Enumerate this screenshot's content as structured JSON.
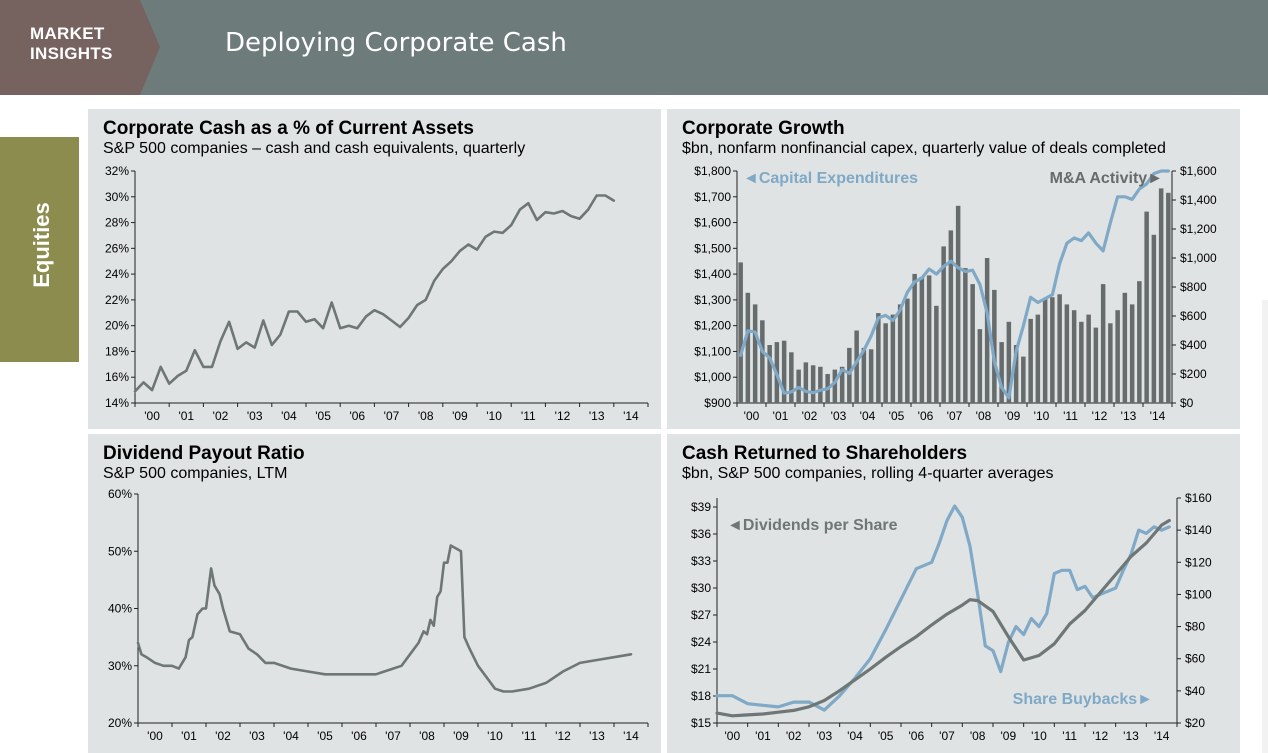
{
  "header": {
    "badge_line1": "MARKET",
    "badge_line2": "INSIGHTS",
    "title": "Deploying Corporate Cash",
    "bg_color": "#6e7b7b",
    "badge_color": "#76635f"
  },
  "side_tab": {
    "label": "Equities",
    "color": "#8c8c4e"
  },
  "colors": {
    "dark": "#6e7676",
    "light": "#7fa9c6",
    "bar": "#666b6b",
    "panel": "#dfe3e3"
  },
  "chart_data": [
    {
      "id": "cash",
      "type": "line",
      "title": "Corporate Cash as a % of Current Assets",
      "subtitle": "S&P 500 companies – cash and cash equivalents, quarterly",
      "ylim": [
        14,
        32
      ],
      "yticks": [
        14,
        16,
        18,
        20,
        22,
        24,
        26,
        28,
        30,
        32
      ],
      "ytick_labels": [
        "14%",
        "16%",
        "18%",
        "20%",
        "22%",
        "24%",
        "26%",
        "28%",
        "30%",
        "32%"
      ],
      "xlim": [
        2000,
        2015
      ],
      "xtick_labels": [
        "'00",
        "'01",
        "'02",
        "'03",
        "'04",
        "'05",
        "'06",
        "'07",
        "'08",
        "'09",
        "'10",
        "'11",
        "'12",
        "'13",
        "'14"
      ],
      "series": [
        {
          "name": "Cash % of current assets",
          "color": "#6e7676",
          "x": [
            2000.0,
            2000.25,
            2000.5,
            2000.75,
            2001.0,
            2001.25,
            2001.5,
            2001.75,
            2002.0,
            2002.25,
            2002.5,
            2002.75,
            2003.0,
            2003.25,
            2003.5,
            2003.75,
            2004.0,
            2004.25,
            2004.5,
            2004.75,
            2005.0,
            2005.25,
            2005.5,
            2005.75,
            2006.0,
            2006.25,
            2006.5,
            2006.75,
            2007.0,
            2007.25,
            2007.5,
            2007.75,
            2008.0,
            2008.25,
            2008.5,
            2008.75,
            2009.0,
            2009.25,
            2009.5,
            2009.75,
            2010.0,
            2010.25,
            2010.5,
            2010.75,
            2011.0,
            2011.25,
            2011.5,
            2011.75,
            2012.0,
            2012.25,
            2012.5,
            2012.75,
            2013.0,
            2013.25,
            2013.5,
            2013.75,
            2014.0
          ],
          "values": [
            14.9,
            15.6,
            15.0,
            16.8,
            15.5,
            16.1,
            16.5,
            18.1,
            16.8,
            16.8,
            18.8,
            20.3,
            18.2,
            18.7,
            18.3,
            20.4,
            18.5,
            19.3,
            21.1,
            21.1,
            20.3,
            20.5,
            19.8,
            21.8,
            19.8,
            20.0,
            19.8,
            20.7,
            21.2,
            20.9,
            20.4,
            19.9,
            20.6,
            21.6,
            22.0,
            23.5,
            24.4,
            25.0,
            25.8,
            26.3,
            25.9,
            26.9,
            27.3,
            27.2,
            27.8,
            29.0,
            29.5,
            28.2,
            28.8,
            28.7,
            28.9,
            28.5,
            28.3,
            29.0,
            30.1,
            30.1,
            29.7
          ]
        }
      ]
    },
    {
      "id": "growth",
      "type": "bar+line",
      "title": "Corporate Growth",
      "subtitle": "$bn, nonfarm nonfinancial capex, quarterly value of deals completed",
      "left_axis": {
        "label": "Capital Expenditures",
        "ylim": [
          900,
          1800
        ],
        "yticks": [
          900,
          1000,
          1100,
          1200,
          1300,
          1400,
          1500,
          1600,
          1700,
          1800
        ],
        "ytick_labels": [
          "$900",
          "$1,000",
          "$1,100",
          "$1,200",
          "$1,300",
          "$1,400",
          "$1,500",
          "$1,600",
          "$1,700",
          "$1,800"
        ]
      },
      "right_axis": {
        "label": "M&A Activity",
        "ylim": [
          0,
          1600
        ],
        "yticks": [
          0,
          200,
          400,
          600,
          800,
          1000,
          1200,
          1400,
          1600
        ],
        "ytick_labels": [
          "$0",
          "$200",
          "$400",
          "$600",
          "$800",
          "$1,000",
          "$1,200",
          "$1,400",
          "$1,600"
        ]
      },
      "xlim": [
        2000,
        2015
      ],
      "xtick_labels": [
        "'00",
        "'01",
        "'02",
        "'03",
        "'04",
        "'05",
        "'06",
        "'07",
        "'08",
        "'09",
        "'10",
        "'11",
        "'12",
        "'13",
        "'14"
      ],
      "legend_capex": "◄Capital Expenditures",
      "legend_mna": "M&A Activity►",
      "series": [
        {
          "name": "M&A Activity",
          "type": "bar",
          "axis": "right",
          "color": "#666b6b",
          "x": [
            2000.0,
            2000.25,
            2000.5,
            2000.75,
            2001.0,
            2001.25,
            2001.5,
            2001.75,
            2002.0,
            2002.25,
            2002.5,
            2002.75,
            2003.0,
            2003.25,
            2003.5,
            2003.75,
            2004.0,
            2004.25,
            2004.5,
            2004.75,
            2005.0,
            2005.25,
            2005.5,
            2005.75,
            2006.0,
            2006.25,
            2006.5,
            2006.75,
            2007.0,
            2007.25,
            2007.5,
            2007.75,
            2008.0,
            2008.25,
            2008.5,
            2008.75,
            2009.0,
            2009.25,
            2009.5,
            2009.75,
            2010.0,
            2010.25,
            2010.5,
            2010.75,
            2011.0,
            2011.25,
            2011.5,
            2011.75,
            2012.0,
            2012.25,
            2012.5,
            2012.75,
            2013.0,
            2013.25,
            2013.5,
            2013.75,
            2014.0,
            2014.25,
            2014.5,
            2014.75
          ],
          "values": [
            970,
            760,
            680,
            570,
            400,
            420,
            430,
            350,
            230,
            280,
            260,
            250,
            200,
            230,
            250,
            380,
            500,
            380,
            370,
            620,
            550,
            610,
            680,
            720,
            890,
            870,
            880,
            670,
            1080,
            1190,
            1360,
            930,
            820,
            510,
            1000,
            780,
            420,
            560,
            400,
            320,
            580,
            610,
            720,
            730,
            750,
            680,
            640,
            560,
            610,
            520,
            820,
            550,
            640,
            760,
            680,
            840,
            1320,
            1160,
            1480,
            1450
          ]
        },
        {
          "name": "Capital Expenditures",
          "type": "line",
          "axis": "left",
          "color": "#7fa9c6",
          "x": [
            2000.0,
            2000.25,
            2000.5,
            2000.75,
            2001.0,
            2001.25,
            2001.5,
            2001.75,
            2002.0,
            2002.25,
            2002.5,
            2002.75,
            2003.0,
            2003.25,
            2003.5,
            2003.75,
            2004.0,
            2004.25,
            2004.5,
            2004.75,
            2005.0,
            2005.25,
            2005.5,
            2005.75,
            2006.0,
            2006.25,
            2006.5,
            2006.75,
            2007.0,
            2007.25,
            2007.5,
            2007.75,
            2008.0,
            2008.25,
            2008.5,
            2008.75,
            2009.0,
            2009.25,
            2009.5,
            2009.75,
            2010.0,
            2010.25,
            2010.5,
            2010.75,
            2011.0,
            2011.25,
            2011.5,
            2011.75,
            2012.0,
            2012.25,
            2012.5,
            2012.75,
            2013.0,
            2013.25,
            2013.5,
            2013.75,
            2014.0,
            2014.25,
            2014.5,
            2014.75
          ],
          "values": [
            1085,
            1180,
            1175,
            1100,
            1075,
            1010,
            938,
            943,
            960,
            945,
            940,
            950,
            955,
            980,
            1030,
            1015,
            1060,
            1105,
            1160,
            1230,
            1240,
            1220,
            1260,
            1330,
            1370,
            1385,
            1420,
            1400,
            1430,
            1450,
            1425,
            1410,
            1415,
            1360,
            1250,
            1060,
            960,
            920,
            1100,
            1200,
            1310,
            1290,
            1305,
            1320,
            1440,
            1520,
            1540,
            1530,
            1560,
            1520,
            1490,
            1600,
            1700,
            1700,
            1690,
            1730,
            1750,
            1790,
            1800,
            1800
          ]
        }
      ]
    },
    {
      "id": "payout",
      "type": "line",
      "title": "Dividend Payout Ratio",
      "subtitle": "S&P 500 companies, LTM",
      "ylim": [
        20,
        60
      ],
      "yticks": [
        20,
        30,
        40,
        50,
        60
      ],
      "ytick_labels": [
        "20%",
        "30%",
        "40%",
        "50%",
        "60%"
      ],
      "xlim": [
        2000,
        2015
      ],
      "xtick_labels": [
        "'00",
        "'01",
        "'02",
        "'03",
        "'04",
        "'05",
        "'06",
        "'07",
        "'08",
        "'09",
        "'10",
        "'11",
        "'12",
        "'13",
        "'14"
      ],
      "series": [
        {
          "name": "Payout ratio",
          "color": "#6e7676",
          "x": [
            2000.0,
            2000.1,
            2000.25,
            2000.5,
            2000.75,
            2001.0,
            2001.2,
            2001.4,
            2001.5,
            2001.6,
            2001.75,
            2001.9,
            2002.0,
            2002.15,
            2002.25,
            2002.4,
            2002.5,
            2002.7,
            2003.0,
            2003.25,
            2003.5,
            2003.75,
            2004.0,
            2004.5,
            2005.0,
            2005.5,
            2006.0,
            2006.5,
            2007.0,
            2007.5,
            2007.75,
            2008.0,
            2008.25,
            2008.4,
            2008.5,
            2008.6,
            2008.7,
            2008.8,
            2008.9,
            2009.0,
            2009.1,
            2009.2,
            2009.35,
            2009.5,
            2009.6,
            2009.75,
            2010.0,
            2010.25,
            2010.5,
            2010.75,
            2011.0,
            2011.5,
            2012.0,
            2012.5,
            2013.0,
            2013.5,
            2014.0,
            2014.5
          ],
          "values": [
            34,
            32,
            31.5,
            30.5,
            30,
            30,
            29.5,
            31.5,
            34.5,
            35,
            39,
            40,
            40,
            47,
            44,
            42.5,
            40,
            36,
            35.5,
            33,
            32,
            30.5,
            30.5,
            29.5,
            29,
            28.5,
            28.5,
            28.5,
            28.5,
            29.5,
            30,
            32,
            34,
            36,
            35.5,
            38,
            37,
            42,
            43,
            48,
            48,
            51,
            50.5,
            50,
            35,
            33,
            30,
            28,
            26,
            25.5,
            25.5,
            26,
            27,
            29,
            30.5,
            31,
            31.5,
            32
          ]
        }
      ]
    },
    {
      "id": "returned",
      "type": "line",
      "title": "Cash Returned to Shareholders",
      "subtitle": "$bn, S&P 500 companies, rolling 4-quarter averages",
      "left_axis": {
        "label": "Dividends per Share",
        "ylim": [
          15,
          40
        ],
        "yticks": [
          15,
          18,
          21,
          24,
          27,
          30,
          33,
          36,
          39
        ],
        "ytick_labels": [
          "$15",
          "$18",
          "$21",
          "$24",
          "$27",
          "$30",
          "$33",
          "$36",
          "$39"
        ]
      },
      "right_axis": {
        "label": "Share Buybacks",
        "ylim": [
          20,
          160
        ],
        "yticks": [
          20,
          40,
          60,
          80,
          100,
          120,
          140,
          160
        ],
        "ytick_labels": [
          "$20",
          "$40",
          "$60",
          "$80",
          "$100",
          "$120",
          "$140",
          "$160"
        ]
      },
      "xlim": [
        2000,
        2015
      ],
      "xtick_labels": [
        "'00",
        "'01",
        "'02",
        "'03",
        "'04",
        "'05",
        "'06",
        "'07",
        "'08",
        "'09",
        "'10",
        "'11",
        "'12",
        "'13",
        "'14"
      ],
      "legend_dps": "◄Dividends per Share",
      "legend_buyback": "Share Buybacks►",
      "series": [
        {
          "name": "Dividends per Share",
          "axis": "left",
          "color": "#6e7676",
          "x": [
            2000.0,
            2000.5,
            2001.0,
            2001.5,
            2002.0,
            2002.5,
            2003.0,
            2003.5,
            2004.0,
            2004.5,
            2005.0,
            2005.5,
            2006.0,
            2006.5,
            2007.0,
            2007.5,
            2008.0,
            2008.25,
            2008.5,
            2009.0,
            2009.5,
            2010.0,
            2010.5,
            2011.0,
            2011.5,
            2012.0,
            2012.5,
            2013.0,
            2013.5,
            2014.0,
            2014.5,
            2014.75
          ],
          "values": [
            16.1,
            15.8,
            15.9,
            16.0,
            16.2,
            16.4,
            16.8,
            17.5,
            18.6,
            19.8,
            21.0,
            22.3,
            23.5,
            24.6,
            25.9,
            27.1,
            28.1,
            28.7,
            28.6,
            27.4,
            24.6,
            22.0,
            22.5,
            23.8,
            26.0,
            27.5,
            29.5,
            31.5,
            33.5,
            35.0,
            37.0,
            37.5
          ]
        },
        {
          "name": "Share Buybacks",
          "axis": "right",
          "color": "#7fa9c6",
          "x": [
            2000.0,
            2000.5,
            2001.0,
            2001.5,
            2002.0,
            2002.5,
            2003.0,
            2003.5,
            2004.0,
            2004.5,
            2005.0,
            2005.5,
            2006.0,
            2006.5,
            2007.0,
            2007.25,
            2007.5,
            2007.75,
            2008.0,
            2008.25,
            2008.5,
            2008.75,
            2009.0,
            2009.25,
            2009.5,
            2009.75,
            2010.0,
            2010.25,
            2010.5,
            2010.75,
            2011.0,
            2011.25,
            2011.5,
            2011.75,
            2012.0,
            2012.25,
            2012.5,
            2012.75,
            2013.0,
            2013.25,
            2013.5,
            2013.75,
            2014.0,
            2014.25,
            2014.5,
            2014.75
          ],
          "values": [
            37,
            37,
            32,
            31,
            30,
            33,
            33,
            28,
            37,
            48,
            60,
            78,
            97,
            116,
            120,
            132,
            146,
            155,
            148,
            130,
            100,
            68,
            65,
            52,
            70,
            80,
            75,
            85,
            80,
            88,
            113,
            115,
            115,
            103,
            105,
            98,
            100,
            102,
            104,
            115,
            125,
            140,
            138,
            142,
            140,
            142
          ]
        }
      ]
    }
  ]
}
